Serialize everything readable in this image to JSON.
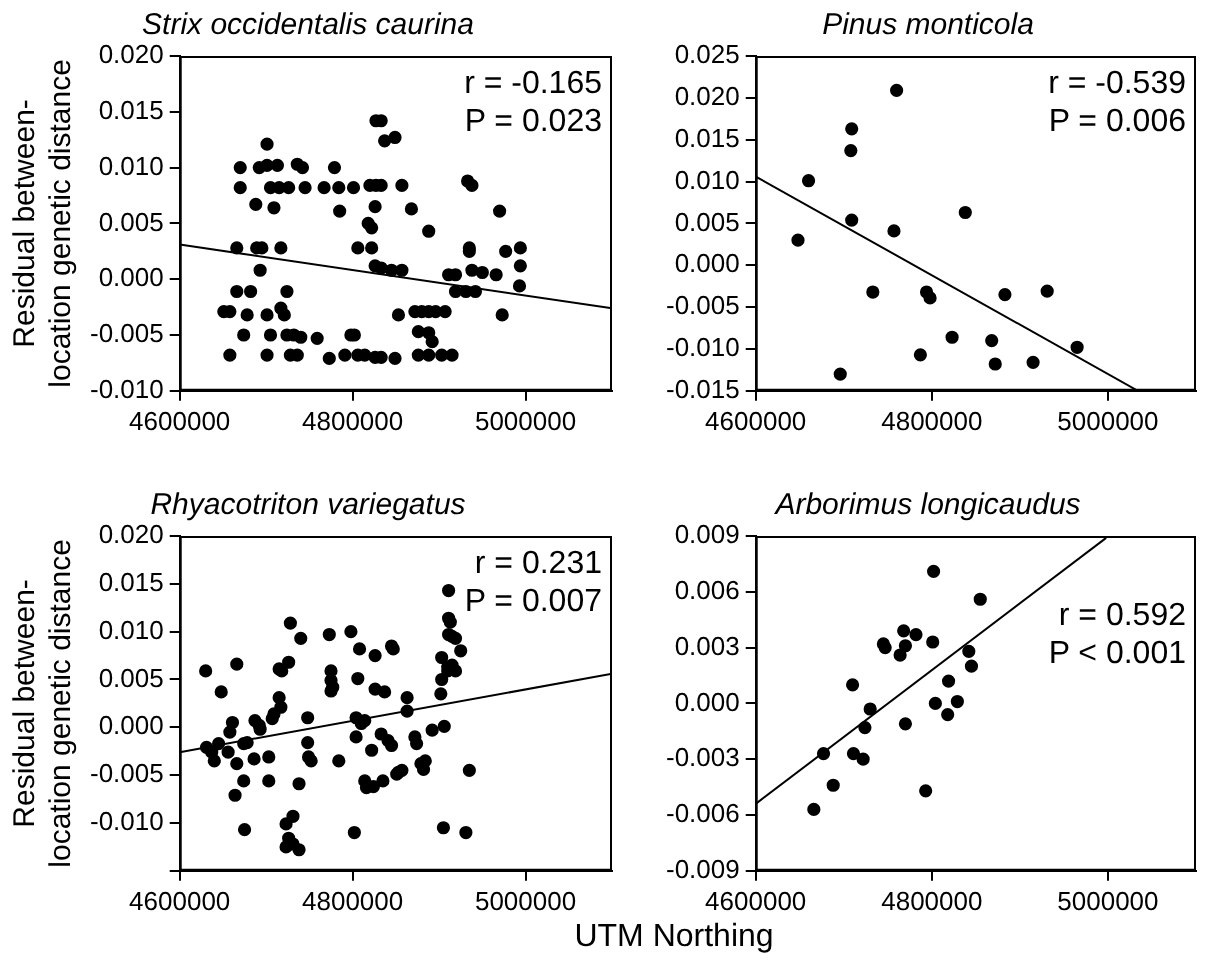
{
  "chart_data": [
    {
      "type": "scatter",
      "title": "Strix occidentalis caurina",
      "ylabel": "Residual between-location genetic distance",
      "marker": "circle",
      "xlim": [
        4600000,
        5100000
      ],
      "xticks": [
        4600000,
        4800000,
        5000000
      ],
      "ylim": [
        -0.01,
        0.02
      ],
      "yticks": [
        {
          "value": 0.02,
          "label": "0.020"
        },
        {
          "value": 0.015,
          "label": "0.015"
        },
        {
          "value": 0.01,
          "label": "0.010"
        },
        {
          "value": 0.005,
          "label": "0.005"
        },
        {
          "value": 0,
          "label": "0.000"
        },
        {
          "value": -0.005,
          "label": "-0.005"
        },
        {
          "value": -0.01,
          "label": "-0.010"
        }
      ],
      "annotations": [
        "r = -0.165",
        "P = 0.023"
      ],
      "series": [
        {
          "color": "#000000",
          "x": [
            4701000,
            4670000,
            4692000,
            4701000,
            4713000,
            4736000,
            4742000,
            4779000,
            4670000,
            4705000,
            4715000,
            4726000,
            4745000,
            4767000,
            4784000,
            4801000,
            4820000,
            4827000,
            4833000,
            4857000,
            4933000,
            4938000,
            4688000,
            4709000,
            4785000,
            4826000,
            4868000,
            4970000,
            4827000,
            4833000,
            4837000,
            4849000,
            4818000,
            4822000,
            4888000,
            4666000,
            4689000,
            4695000,
            4717000,
            4806000,
            4822000,
            4935000,
            4977000,
            4994000,
            4693000,
            4826000,
            4833000,
            4845000,
            4857000,
            4935000,
            4938000,
            4950000,
            4966000,
            4911000,
            4919000,
            4994000,
            4666000,
            4682000,
            4724000,
            4919000,
            4931000,
            4942000,
            4993000,
            4651000,
            4658000,
            4678000,
            4701000,
            4717000,
            4721000,
            4853000,
            4872000,
            4880000,
            4888000,
            4896000,
            4907000,
            4973000,
            4674000,
            4705000,
            4724000,
            4732000,
            4740000,
            4759000,
            4798000,
            4802000,
            4876000,
            4888000,
            4892000,
            4658000,
            4701000,
            4728000,
            4736000,
            4773000,
            4791000,
            4806000,
            4814000,
            4826000,
            4833000,
            4849000,
            4876000,
            4888000,
            4903000,
            4915000
          ],
          "values": [
            0.0121,
            0.01,
            0.01,
            0.0102,
            0.0102,
            0.0103,
            0.01,
            0.01,
            0.0082,
            0.0082,
            0.0082,
            0.0082,
            0.0082,
            0.0082,
            0.0082,
            0.0082,
            0.0084,
            0.0084,
            0.0084,
            0.0084,
            0.0088,
            0.0084,
            0.0067,
            0.0064,
            0.0061,
            0.0065,
            0.0063,
            0.0061,
            0.0142,
            0.0142,
            0.0124,
            0.0127,
            0.005,
            0.0046,
            0.0043,
            0.0028,
            0.0028,
            0.0028,
            0.0028,
            0.0028,
            0.0028,
            0.0028,
            0.0025,
            0.0028,
            0.0008,
            0.0012,
            0.001,
            0.0008,
            0.0008,
            0.0025,
            0.0008,
            0.0006,
            0.0004,
            0.0004,
            0.0004,
            0.0012,
            -0.0011,
            -0.0011,
            -0.0011,
            -0.0011,
            -0.0011,
            -0.0011,
            -0.0006,
            -0.0029,
            -0.0029,
            -0.0032,
            -0.0032,
            -0.0026,
            -0.0032,
            -0.0032,
            -0.0029,
            -0.0029,
            -0.0029,
            -0.0029,
            -0.0029,
            -0.0032,
            -0.005,
            -0.005,
            -0.005,
            -0.005,
            -0.0052,
            -0.0053,
            -0.005,
            -0.005,
            -0.0047,
            -0.0048,
            -0.0056,
            -0.0068,
            -0.0068,
            -0.0068,
            -0.0068,
            -0.0071,
            -0.0068,
            -0.0068,
            -0.0068,
            -0.007,
            -0.007,
            -0.0071,
            -0.0068,
            -0.0068,
            -0.0068,
            -0.0068
          ]
        },
        {
          "type": "line",
          "marker": "none",
          "color": "#000000",
          "x": [
            4600000,
            5100000
          ],
          "values": [
            0.0031,
            -0.0026
          ]
        }
      ]
    },
    {
      "type": "scatter",
      "title": "Pinus monticola",
      "marker": "circle",
      "xlim": [
        4600000,
        5100000
      ],
      "xticks": [
        4600000,
        4800000,
        5000000
      ],
      "ylim": [
        -0.015,
        0.025
      ],
      "yticks": [
        0.025,
        {
          "value": 0.02,
          "label": "0.020"
        },
        0.015,
        {
          "value": 0.01,
          "label": "0.010"
        },
        0.005,
        {
          "value": 0,
          "label": "0.000"
        },
        -0.005,
        {
          "value": -0.01,
          "label": "-0.010"
        },
        -0.015
      ],
      "annotations": [
        "r = -0.539",
        "P = 0.006"
      ],
      "series": [
        {
          "color": "#000000",
          "x": [
            4648000,
            4660000,
            4696000,
            4708000,
            4709000,
            4709000,
            4733000,
            4757000,
            4760000,
            4787000,
            4794000,
            4798000,
            4823000,
            4838000,
            4868000,
            4872000,
            4883000,
            4915000,
            4931000,
            4965000
          ],
          "values": [
            0.003,
            0.0101,
            -0.013,
            0.0137,
            0.0163,
            0.0054,
            -0.0032,
            0.0041,
            0.0209,
            -0.0107,
            -0.0032,
            -0.0039,
            -0.0086,
            0.0063,
            -0.009,
            -0.0118,
            -0.0035,
            -0.0116,
            -0.0031,
            -0.0098
          ]
        },
        {
          "type": "line",
          "marker": "none",
          "color": "#000000",
          "x": [
            4600000,
            5034000
          ],
          "values": [
            0.0106,
            -0.015
          ]
        }
      ]
    },
    {
      "type": "scatter",
      "title": "Rhyacotriton variegatus",
      "ylabel": "Residual between-location genetic distance",
      "xlabel": "UTM Northing",
      "marker": "circle",
      "xlim": [
        4600000,
        5100000
      ],
      "xticks": [
        4600000,
        4800000,
        5000000
      ],
      "ylim": [
        -0.015,
        0.02
      ],
      "yticks": [
        {
          "value": 0.02,
          "label": "0.020"
        },
        {
          "value": 0.015,
          "label": "0.015"
        },
        {
          "value": 0.01,
          "label": "0.010"
        },
        {
          "value": 0.005,
          "label": "0.005"
        },
        {
          "value": 0,
          "label": "0.000"
        },
        {
          "value": -0.005,
          "label": "-0.005"
        },
        {
          "value": -0.01,
          "label": "-0.010"
        },
        {
          "value": -0.015,
          "label": null
        }
      ],
      "annotations": [
        "r = 0.231",
        "P = 0.007"
      ],
      "series": [
        {
          "color": "#000000",
          "x": [
            4630000,
            4666000,
            4648000,
            4631000,
            4637000,
            4640000,
            4645000,
            4656000,
            4658000,
            4661000,
            4666000,
            4664000,
            4674000,
            4674000,
            4678000,
            4686000,
            4687000,
            4692000,
            4693000,
            4703000,
            4703000,
            4707000,
            4709000,
            4715000,
            4717000,
            4715000,
            4718000,
            4726000,
            4728000,
            4740000,
            4738000,
            4748000,
            4748000,
            4749000,
            4752000,
            4731000,
            4723000,
            4726000,
            4731000,
            4738000,
            4723000,
            4675000,
            4773000,
            4775000,
            4775000,
            4777000,
            4775000,
            4784000,
            4798000,
            4804000,
            4804000,
            4808000,
            4806000,
            4810000,
            4814000,
            4814000,
            4816000,
            4822000,
            4824000,
            4826000,
            4826000,
            4833000,
            4835000,
            4837000,
            4841000,
            4845000,
            4845000,
            4847000,
            4851000,
            4853000,
            4857000,
            4863000,
            4863000,
            4872000,
            4874000,
            4879000,
            4882000,
            4884000,
            4892000,
            4902000,
            4903000,
            4903000,
            4906000,
            4910000,
            4911000,
            4911000,
            4913000,
            4911000,
            4915000,
            4919000,
            4925000,
            4910000,
            4915000,
            4919000,
            4935000,
            4802000,
            4905000,
            4931000
          ],
          "values": [
            0.0059,
            0.0066,
            0.0037,
            -0.0021,
            -0.0026,
            -0.0035,
            -0.0017,
            -0.0026,
            -0.0005,
            0.0005,
            -0.0038,
            -0.0071,
            -0.0056,
            -0.0017,
            -0.0016,
            -0.0033,
            0.0007,
            0.0002,
            -0.0002,
            -0.0031,
            -0.0056,
            0.0009,
            0.0014,
            0.0031,
            0.0021,
            0.0061,
            0.0059,
            0.0068,
            0.0109,
            0.0093,
            -0.0059,
            0.001,
            -0.0016,
            -0.0031,
            -0.0035,
            -0.0093,
            -0.0101,
            -0.0116,
            -0.0122,
            -0.0128,
            -0.0125,
            -0.0107,
            0.0097,
            0.0059,
            0.0049,
            0.0042,
            0.0038,
            -0.0035,
            0.01,
            0.001,
            -0.001,
            0.0082,
            0.0051,
            0.0004,
            0.0007,
            -0.0056,
            -0.0063,
            -0.0024,
            -0.0062,
            0.0075,
            0.004,
            -0.0007,
            -0.0056,
            0.0037,
            -0.0014,
            -0.0019,
            0.0085,
            0.0082,
            -0.0049,
            -0.0047,
            -0.0045,
            0.0031,
            0.0017,
            -0.001,
            -0.0017,
            -0.0038,
            -0.0044,
            -0.0035,
            -0.0003,
            0.0035,
            0.005,
            0.0073,
            0.0001,
            0.0063,
            0.0143,
            0.0114,
            0.011,
            0.0097,
            0.0095,
            0.0093,
            0.008,
            0.0059,
            0.0065,
            0.0059,
            -0.0045,
            -0.011,
            -0.0105,
            -0.011
          ]
        },
        {
          "type": "line",
          "marker": "none",
          "color": "#000000",
          "x": [
            4600000,
            5100000
          ],
          "values": [
            -0.0026,
            0.0056
          ]
        }
      ]
    },
    {
      "type": "scatter",
      "title": "Arborimus longicaudus",
      "marker": "circle",
      "xlim": [
        4600000,
        5100000
      ],
      "xticks": [
        4600000,
        4800000,
        5000000
      ],
      "ylim": [
        -0.009,
        0.009
      ],
      "yticks": [
        0.009,
        0.006,
        0.003,
        {
          "value": 0,
          "label": "0.000"
        },
        -0.003,
        -0.006,
        -0.009
      ],
      "annotations": [
        "r = 0.592",
        "P < 0.001"
      ],
      "series": [
        {
          "color": "#000000",
          "x": [
            4666000,
            4677000,
            4688000,
            4710000,
            4711000,
            4722000,
            4724000,
            4730000,
            4745000,
            4747000,
            4764000,
            4768000,
            4770000,
            4770000,
            4782000,
            4793000,
            4801000,
            4802000,
            4804000,
            4818000,
            4819000,
            4829000,
            4842000,
            4845000,
            4855000
          ],
          "values": [
            -0.0057,
            -0.0027,
            -0.0044,
            0.001,
            -0.0027,
            -0.003,
            -0.0013,
            -0.0003,
            0.0032,
            0.003,
            0.0026,
            0.0039,
            0.0031,
            -0.0011,
            0.0037,
            -0.0047,
            0.0033,
            0.0071,
            0,
            -0.0006,
            0.0012,
            0.0001,
            0.0028,
            0.002,
            0.0056
          ]
        },
        {
          "type": "line",
          "marker": "none",
          "color": "#000000",
          "x": [
            4600000,
            4998000
          ],
          "values": [
            -0.0054,
            0.0089
          ]
        }
      ]
    }
  ]
}
